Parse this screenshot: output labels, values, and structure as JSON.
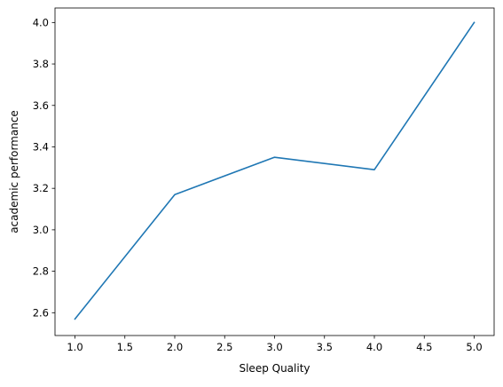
{
  "chart_data": {
    "type": "line",
    "title": "",
    "xlabel": "Sleep Quality",
    "ylabel": "academic performance",
    "x": [
      1.0,
      2.0,
      3.0,
      4.0,
      5.0
    ],
    "series": [
      {
        "values": [
          2.57,
          3.17,
          3.35,
          3.29,
          4.0
        ],
        "color": "#1f77b4"
      }
    ],
    "xlim": [
      0.8,
      5.2
    ],
    "ylim": [
      2.49,
      4.07
    ],
    "xticks": [
      1.0,
      1.5,
      2.0,
      2.5,
      3.0,
      3.5,
      4.0,
      4.5,
      5.0
    ],
    "xtick_labels": [
      "1.0",
      "1.5",
      "2.0",
      "2.5",
      "3.0",
      "3.5",
      "4.0",
      "4.5",
      "5.0"
    ],
    "yticks": [
      2.6,
      2.8,
      3.0,
      3.2,
      3.4,
      3.6,
      3.8,
      4.0
    ],
    "ytick_labels": [
      "2.6",
      "2.8",
      "3.0",
      "3.2",
      "3.4",
      "3.6",
      "3.8",
      "4.0"
    ],
    "grid": false,
    "legend": "none"
  }
}
